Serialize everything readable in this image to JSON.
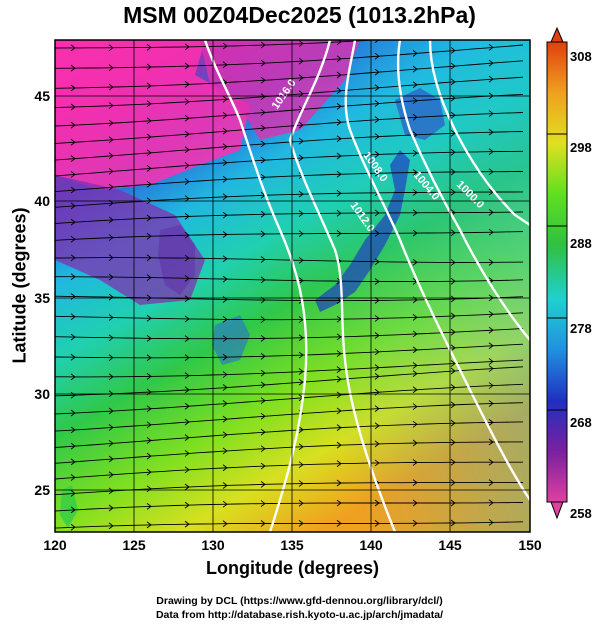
{
  "header": {
    "title": "MSM 00Z04Dec2025 (1013.2hPa)"
  },
  "axes": {
    "x": {
      "label": "Longitude (degrees)",
      "range": [
        120,
        150
      ],
      "ticks": [
        "120",
        "125",
        "130",
        "135",
        "140",
        "145",
        "150"
      ]
    },
    "y": {
      "label": "Latitude  (degrees)",
      "range": [
        22.4,
        47.6
      ],
      "ticks": [
        "25",
        "30",
        "35",
        "40",
        "45"
      ]
    }
  },
  "colorbar": {
    "range": [
      258,
      308
    ],
    "ticks": [
      "258",
      "268",
      "278",
      "288",
      "298",
      "308"
    ],
    "colors": [
      "#e040a0",
      "#7a20a0",
      "#2030c0",
      "#2090e0",
      "#20d0d0",
      "#30c040",
      "#60e020",
      "#e0e020",
      "#f0a020",
      "#e04010"
    ]
  },
  "isobars": [
    {
      "label": "1016.0"
    },
    {
      "label": "1012.0"
    },
    {
      "label": "1008.0"
    },
    {
      "label": "1004.0"
    },
    {
      "label": "1000.0"
    }
  ],
  "credits": {
    "line1": "Drawing by DCL (https://www.gfd-dennou.org/library/dcl/)",
    "line2": "Data from http://database.rish.kyoto-u.ac.jp/arch/jmadata/"
  }
}
